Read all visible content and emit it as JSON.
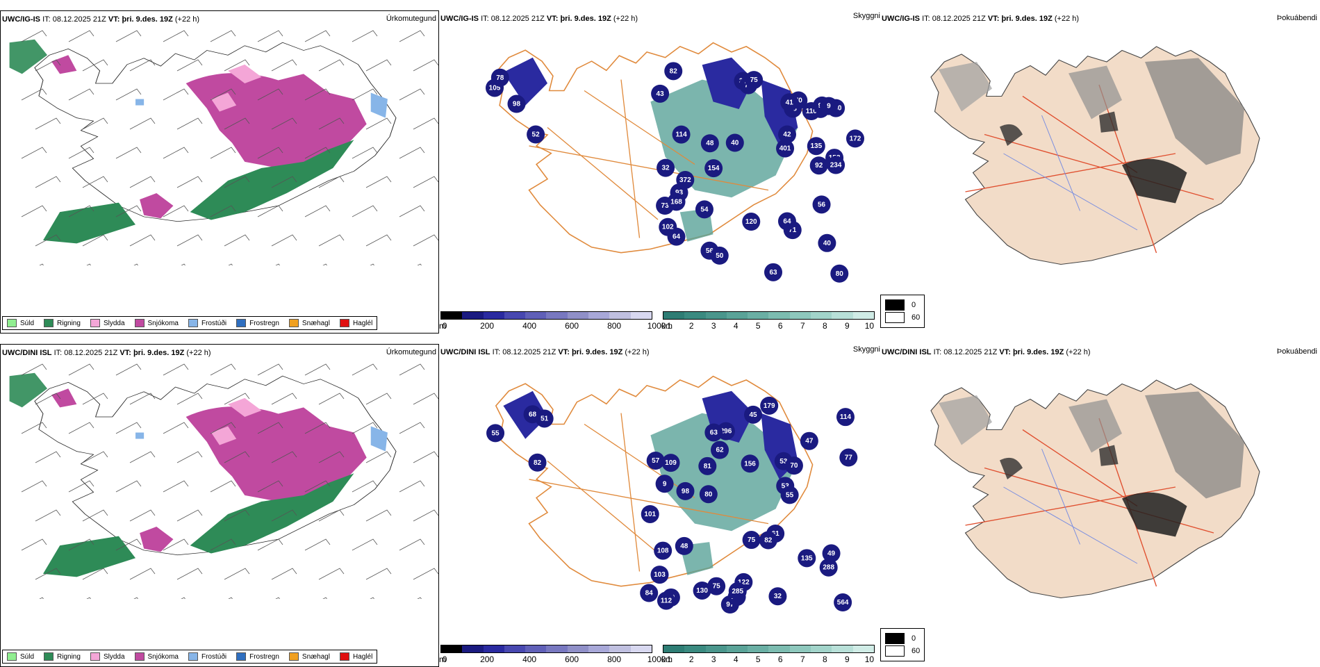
{
  "rows": [
    {
      "model": "UWC/IG-IS",
      "it_label": "IT:",
      "it_value": "08.12.2025 21Z",
      "vt_label": "VT:",
      "vt_value": "þri. 9.des. 19Z",
      "lead": "(+22 h)",
      "cloud_numbers": [
        "105",
        "52",
        "78",
        "98",
        "71",
        "64",
        "43",
        "56",
        "48",
        "65",
        "56",
        "82",
        "110",
        "92",
        "158",
        "172",
        "63",
        "70",
        "33",
        "48",
        "42",
        "40",
        "73",
        "280",
        "372",
        "41",
        "102",
        "94",
        "54",
        "154",
        "120",
        "73",
        "234",
        "93",
        "114",
        "40",
        "50",
        "75",
        "168",
        "80",
        "135",
        "401",
        "32",
        "64",
        "9"
      ]
    },
    {
      "model": "UWC/DINI ISL",
      "it_label": "IT:",
      "it_value": "08.12.2025 21Z",
      "vt_label": "VT:",
      "vt_value": "þri. 9.des. 19Z",
      "lead": "(+22 h)",
      "cloud_numbers": [
        "68",
        "55",
        "82",
        "51",
        "53",
        "70",
        "61",
        "80",
        "130",
        "62",
        "179",
        "114",
        "77",
        "84",
        "101",
        "45",
        "57",
        "55",
        "53",
        "296",
        "98",
        "108",
        "97",
        "82",
        "47",
        "117",
        "564",
        "81",
        "49",
        "122",
        "109",
        "156",
        "70",
        "288",
        "103",
        "112",
        "75",
        "285",
        "32",
        "75",
        "135",
        "63",
        "48",
        "9"
      ]
    }
  ],
  "panel_labels": {
    "ptype": "Úrkomutegund",
    "cloud": "Skyggni",
    "vis": "Þokuábendi"
  },
  "ptype_legend": [
    {
      "label": "Súld",
      "color": "#90ee90"
    },
    {
      "label": "Rigning",
      "color": "#2e8b57"
    },
    {
      "label": "Slydda",
      "color": "#f4a6d7"
    },
    {
      "label": "Snjókoma",
      "color": "#c04aa0"
    },
    {
      "label": "Frostúði",
      "color": "#87b5e8"
    },
    {
      "label": "Frostregn",
      "color": "#2f6fc0"
    },
    {
      "label": "Snæhagl",
      "color": "#f0a020"
    },
    {
      "label": "Haglél",
      "color": "#e01010"
    }
  ],
  "colorbar_m": {
    "unit": "m",
    "ticks": [
      "0",
      "200",
      "400",
      "600",
      "800",
      "1000"
    ],
    "colors": [
      "#000000",
      "#1a1a80",
      "#2a2aa0",
      "#4848b0",
      "#6060b8",
      "#7878c0",
      "#9090c8",
      "#a8a8d8",
      "#c0c0e0",
      "#d8d8f0"
    ]
  },
  "colorbar_km": {
    "unit": "km",
    "ticks": [
      "1",
      "2",
      "3",
      "4",
      "5",
      "6",
      "7",
      "8",
      "9",
      "10"
    ],
    "colors": [
      "#2e7d74",
      "#3a8a80",
      "#4a968c",
      "#5aa398",
      "#6aafa4",
      "#7cbcb0",
      "#8ec8bd",
      "#a2d4ca",
      "#b8e0d8",
      "#d0ece6"
    ]
  },
  "vis_legend": [
    {
      "label": "0",
      "color": "#000000"
    },
    {
      "label": "60",
      "color": "#ffffff"
    }
  ]
}
